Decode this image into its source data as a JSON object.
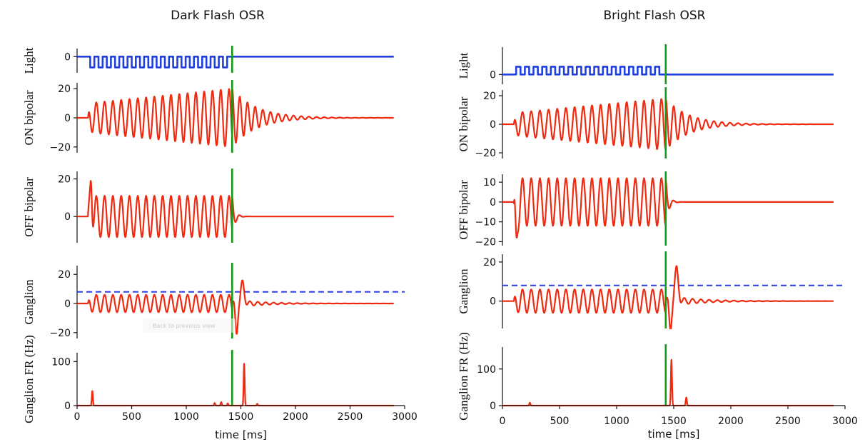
{
  "tooltip": "Back to previous view",
  "colors": {
    "light": "#1f3fe0",
    "trace": "#f02a10",
    "stimulus_off": "#149a14",
    "threshold": "#2a3fe6",
    "axis": "#111111"
  },
  "chart_data": [
    {
      "type": "line",
      "title": "Dark Flash OSR",
      "xlabel": "time [ms]",
      "xlim": [
        0,
        3000
      ],
      "xticks": [
        0,
        500,
        1000,
        1500,
        2000,
        2500,
        3000
      ],
      "stimulus_end_ms": 1420,
      "panels": [
        {
          "ylabel": "Light",
          "ylim": [
            -6,
            3
          ],
          "yticks": [
            0
          ],
          "series": [
            {
              "kind": "square",
              "levels": [
                0,
                -4
              ],
              "onset": 120,
              "offset": 1400,
              "period": 76,
              "after": 0,
              "end": 2900
            }
          ]
        },
        {
          "ylabel": "ON bipolar",
          "ylim": [
            -24,
            24
          ],
          "yticks": [
            -20,
            0,
            20
          ],
          "series": [
            {
              "kind": "osc",
              "onset": 100,
              "offset": 1420,
              "period": 76,
              "ramp_start": 10,
              "ramp_end": 20,
              "tau": 220,
              "end": 2900
            }
          ]
        },
        {
          "ylabel": "OFF bipolar",
          "ylim": [
            -14,
            24
          ],
          "yticks": [
            0,
            20
          ],
          "series": [
            {
              "kind": "osc",
              "onset": 100,
              "offset": 1420,
              "period": 76,
              "amplitude": 11,
              "first_peak": 19,
              "tau": 25,
              "end": 2900
            }
          ]
        },
        {
          "ylabel": "Ganglion",
          "ylim": [
            -24,
            26
          ],
          "yticks": [
            -20,
            0,
            20
          ],
          "threshold": 8,
          "series": [
            {
              "kind": "osc",
              "onset": 100,
              "offset": 1420,
              "period": 76,
              "amplitude": 6,
              "post_peak": 14,
              "post_trough": -20,
              "tau": 250,
              "end": 2900
            }
          ]
        },
        {
          "ylabel": "Ganglion FR (Hz)",
          "ylim": [
            0,
            120
          ],
          "yticks": [
            0,
            100
          ],
          "series": [
            {
              "kind": "spikes",
              "events": [
                [
                  140,
                  33
                ],
                [
                  1260,
                  6
                ],
                [
                  1320,
                  8
                ],
                [
                  1380,
                  5
                ],
                [
                  1530,
                  95
                ],
                [
                  1650,
                  4
                ]
              ],
              "end": 2900
            }
          ]
        }
      ]
    },
    {
      "type": "line",
      "title": "Bright Flash OSR",
      "xlabel": "time [ms]",
      "xlim": [
        0,
        3000
      ],
      "xticks": [
        0,
        500,
        1000,
        1500,
        2000,
        2500,
        3000
      ],
      "stimulus_end_ms": 1430,
      "panels": [
        {
          "ylabel": "Light",
          "ylim": [
            -5,
            14
          ],
          "yticks": [
            0
          ],
          "series": [
            {
              "kind": "square",
              "levels": [
                0,
                4
              ],
              "onset": 120,
              "offset": 1410,
              "period": 76,
              "after": 0,
              "end": 2900
            }
          ]
        },
        {
          "ylabel": "ON bipolar",
          "ylim": [
            -24,
            24
          ],
          "yticks": [
            -20,
            0,
            20
          ],
          "series": [
            {
              "kind": "osc",
              "onset": 100,
              "offset": 1430,
              "period": 76,
              "ramp_start": 8,
              "ramp_end": 18,
              "tau": 200,
              "end": 2900
            }
          ]
        },
        {
          "ylabel": "OFF bipolar",
          "ylim": [
            -22,
            14
          ],
          "yticks": [
            -20,
            -10,
            0,
            10
          ],
          "series": [
            {
              "kind": "osc",
              "onset": 100,
              "offset": 1430,
              "period": 76,
              "amplitude": 12,
              "first_peak": -18,
              "tau": 25,
              "end": 2900
            }
          ]
        },
        {
          "ylabel": "Ganglion",
          "ylim": [
            -14,
            24
          ],
          "yticks": [
            0,
            20
          ],
          "threshold": 8,
          "series": [
            {
              "kind": "osc",
              "onset": 100,
              "offset": 1430,
              "period": 76,
              "amplitude": 6,
              "post_peak": 16,
              "post_trough": -14,
              "tau": 260,
              "end": 2900
            }
          ]
        },
        {
          "ylabel": "Ganglion FR (Hz)",
          "ylim": [
            0,
            160
          ],
          "yticks": [
            0,
            100
          ],
          "series": [
            {
              "kind": "spikes",
              "events": [
                [
                  240,
                  8
                ],
                [
                  1480,
                  125
                ],
                [
                  1610,
                  22
                ]
              ],
              "end": 2900
            }
          ]
        }
      ]
    }
  ]
}
